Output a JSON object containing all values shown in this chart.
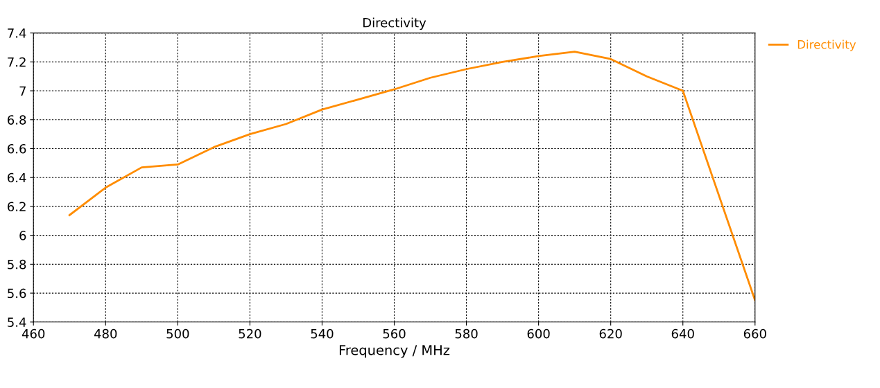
{
  "chart_data": {
    "type": "line",
    "title": "Directivity",
    "xlabel": "Frequency / MHz",
    "x": [
      470,
      480,
      490,
      500,
      510,
      520,
      530,
      540,
      550,
      560,
      570,
      580,
      590,
      600,
      610,
      620,
      630,
      640,
      660
    ],
    "series": [
      {
        "name": "Directivity",
        "color": "#ff8c00",
        "values": [
          6.14,
          6.33,
          6.47,
          6.49,
          6.61,
          6.7,
          6.77,
          6.87,
          6.94,
          7.01,
          7.09,
          7.15,
          7.2,
          7.24,
          7.27,
          7.22,
          7.1,
          7.0,
          5.55
        ]
      }
    ],
    "xlim": [
      460,
      660
    ],
    "xticks": [
      460,
      480,
      500,
      520,
      540,
      560,
      580,
      600,
      620,
      640,
      660
    ],
    "ylim": [
      5.4,
      7.4
    ],
    "yticks": [
      5.4,
      5.6,
      5.8,
      6,
      6.2,
      6.4,
      6.6,
      6.8,
      7,
      7.2,
      7.4
    ],
    "grid": true,
    "legend": "top right",
    "marker": "none",
    "line_style": "solid"
  }
}
